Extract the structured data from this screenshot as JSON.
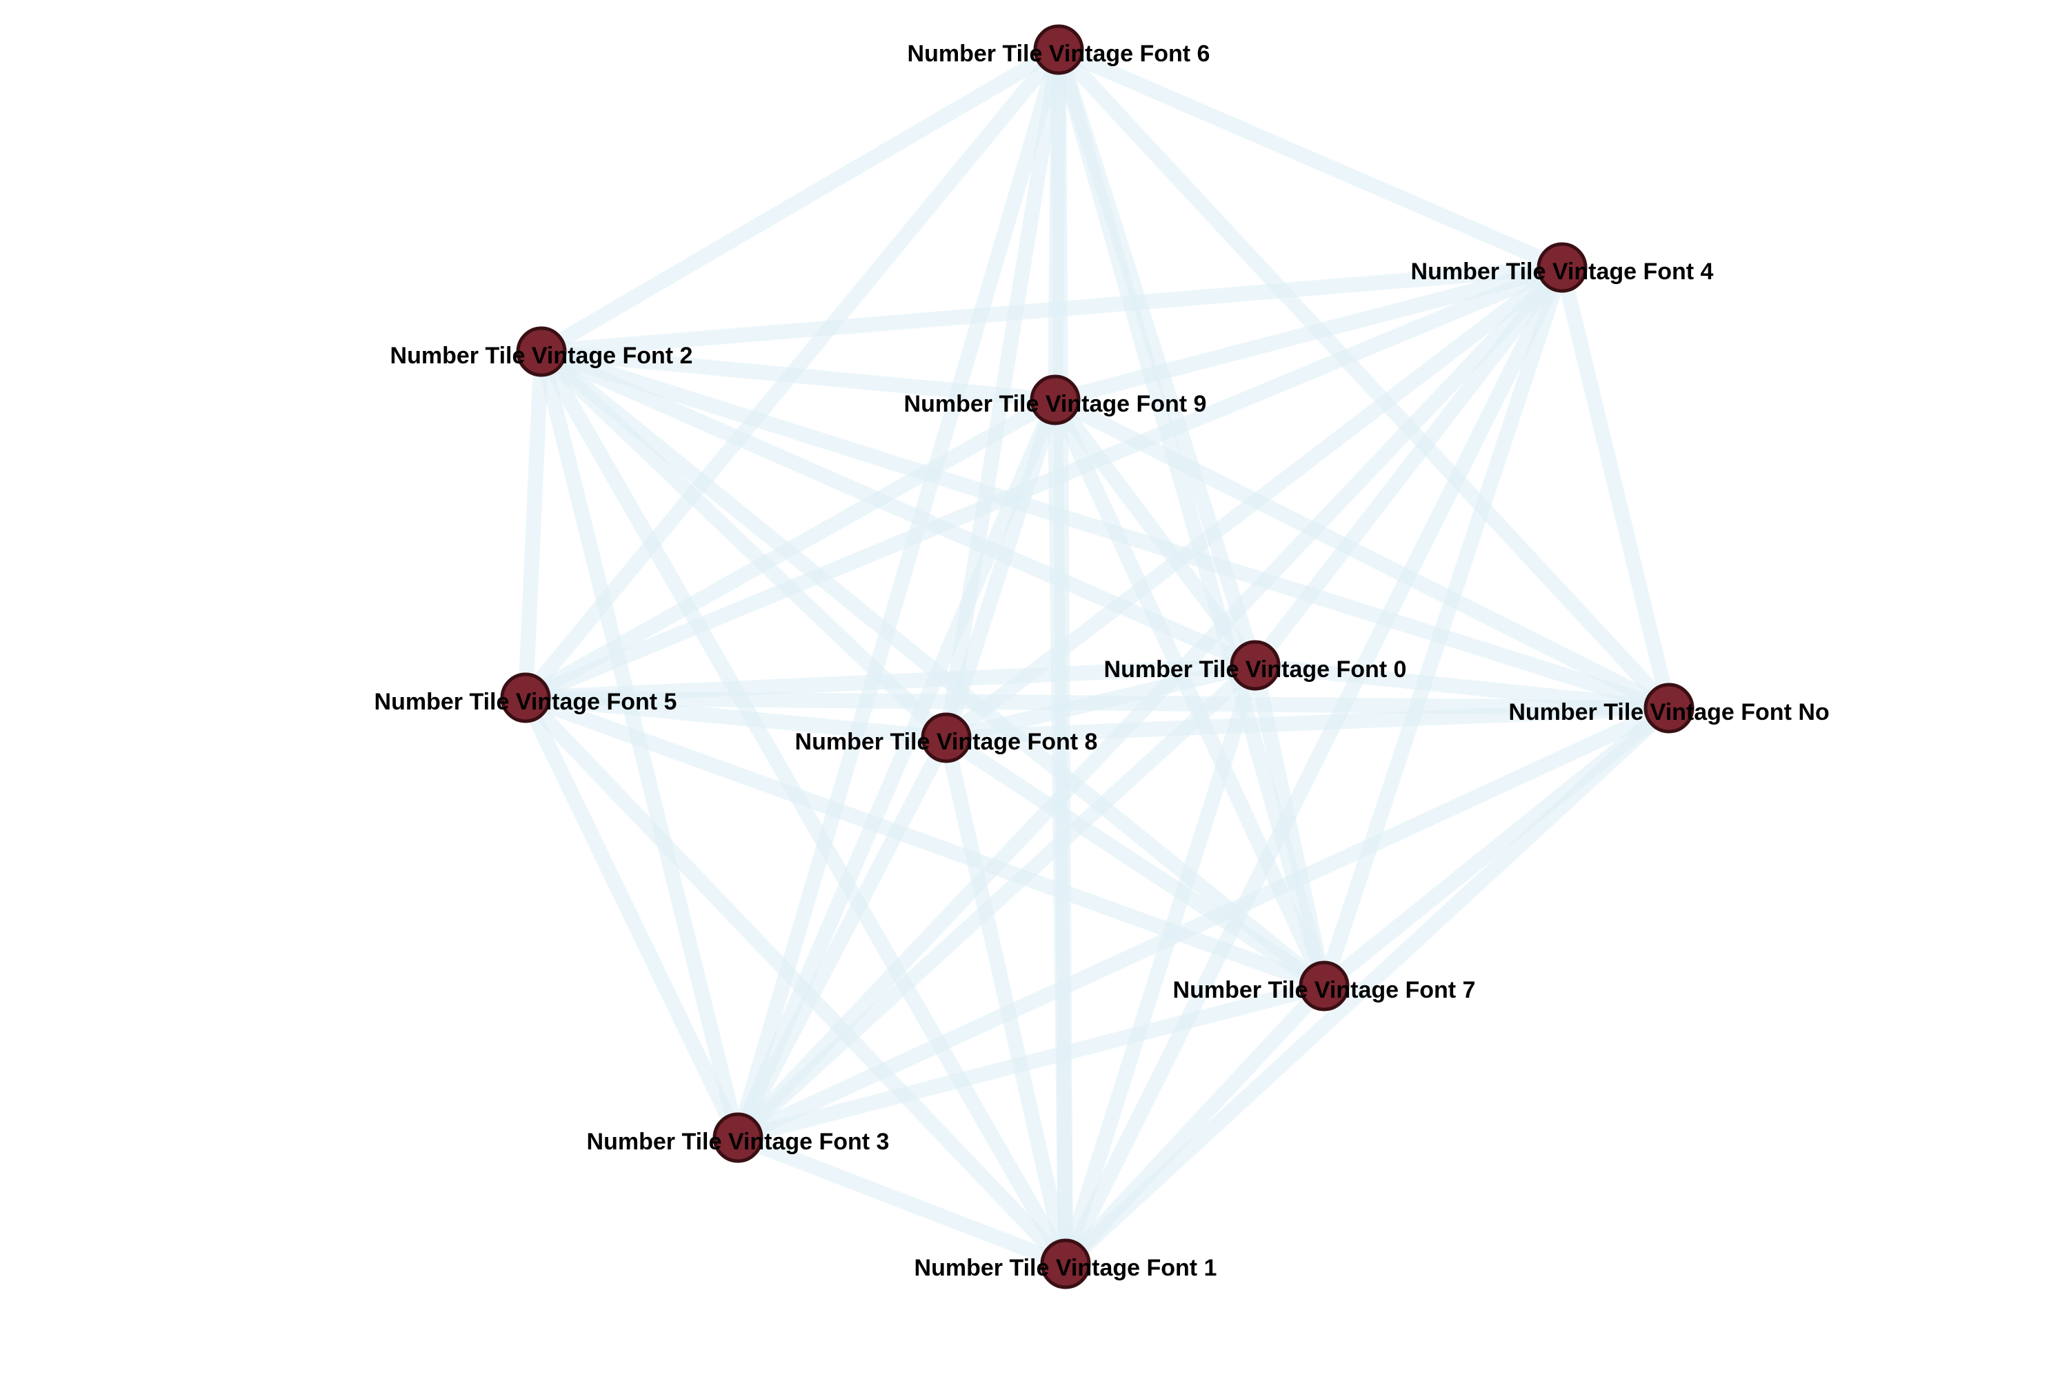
{
  "diagram": {
    "type": "network-graph",
    "complete_graph": true,
    "colors": {
      "edge": "#dff0f6",
      "node_fill": "#7b2630",
      "node_stroke": "#3a0f14",
      "label": "#000000",
      "background": "#ffffff"
    },
    "nodes": [
      {
        "id": "n6",
        "label": "Number Tile Vintage Font 6"
      },
      {
        "id": "n4",
        "label": "Number Tile Vintage Font 4"
      },
      {
        "id": "n2",
        "label": "Number Tile Vintage Font 2"
      },
      {
        "id": "n9",
        "label": "Number Tile Vintage Font 9"
      },
      {
        "id": "n0",
        "label": "Number Tile Vintage Font 0"
      },
      {
        "id": "n5",
        "label": "Number Tile Vintage Font 5"
      },
      {
        "id": "nNo",
        "label": "Number Tile Vintage Font No"
      },
      {
        "id": "n8",
        "label": "Number Tile Vintage Font 8"
      },
      {
        "id": "n7",
        "label": "Number Tile Vintage Font 7"
      },
      {
        "id": "n3",
        "label": "Number Tile Vintage Font 3"
      },
      {
        "id": "n1",
        "label": "Number Tile Vintage Font 1"
      }
    ]
  }
}
